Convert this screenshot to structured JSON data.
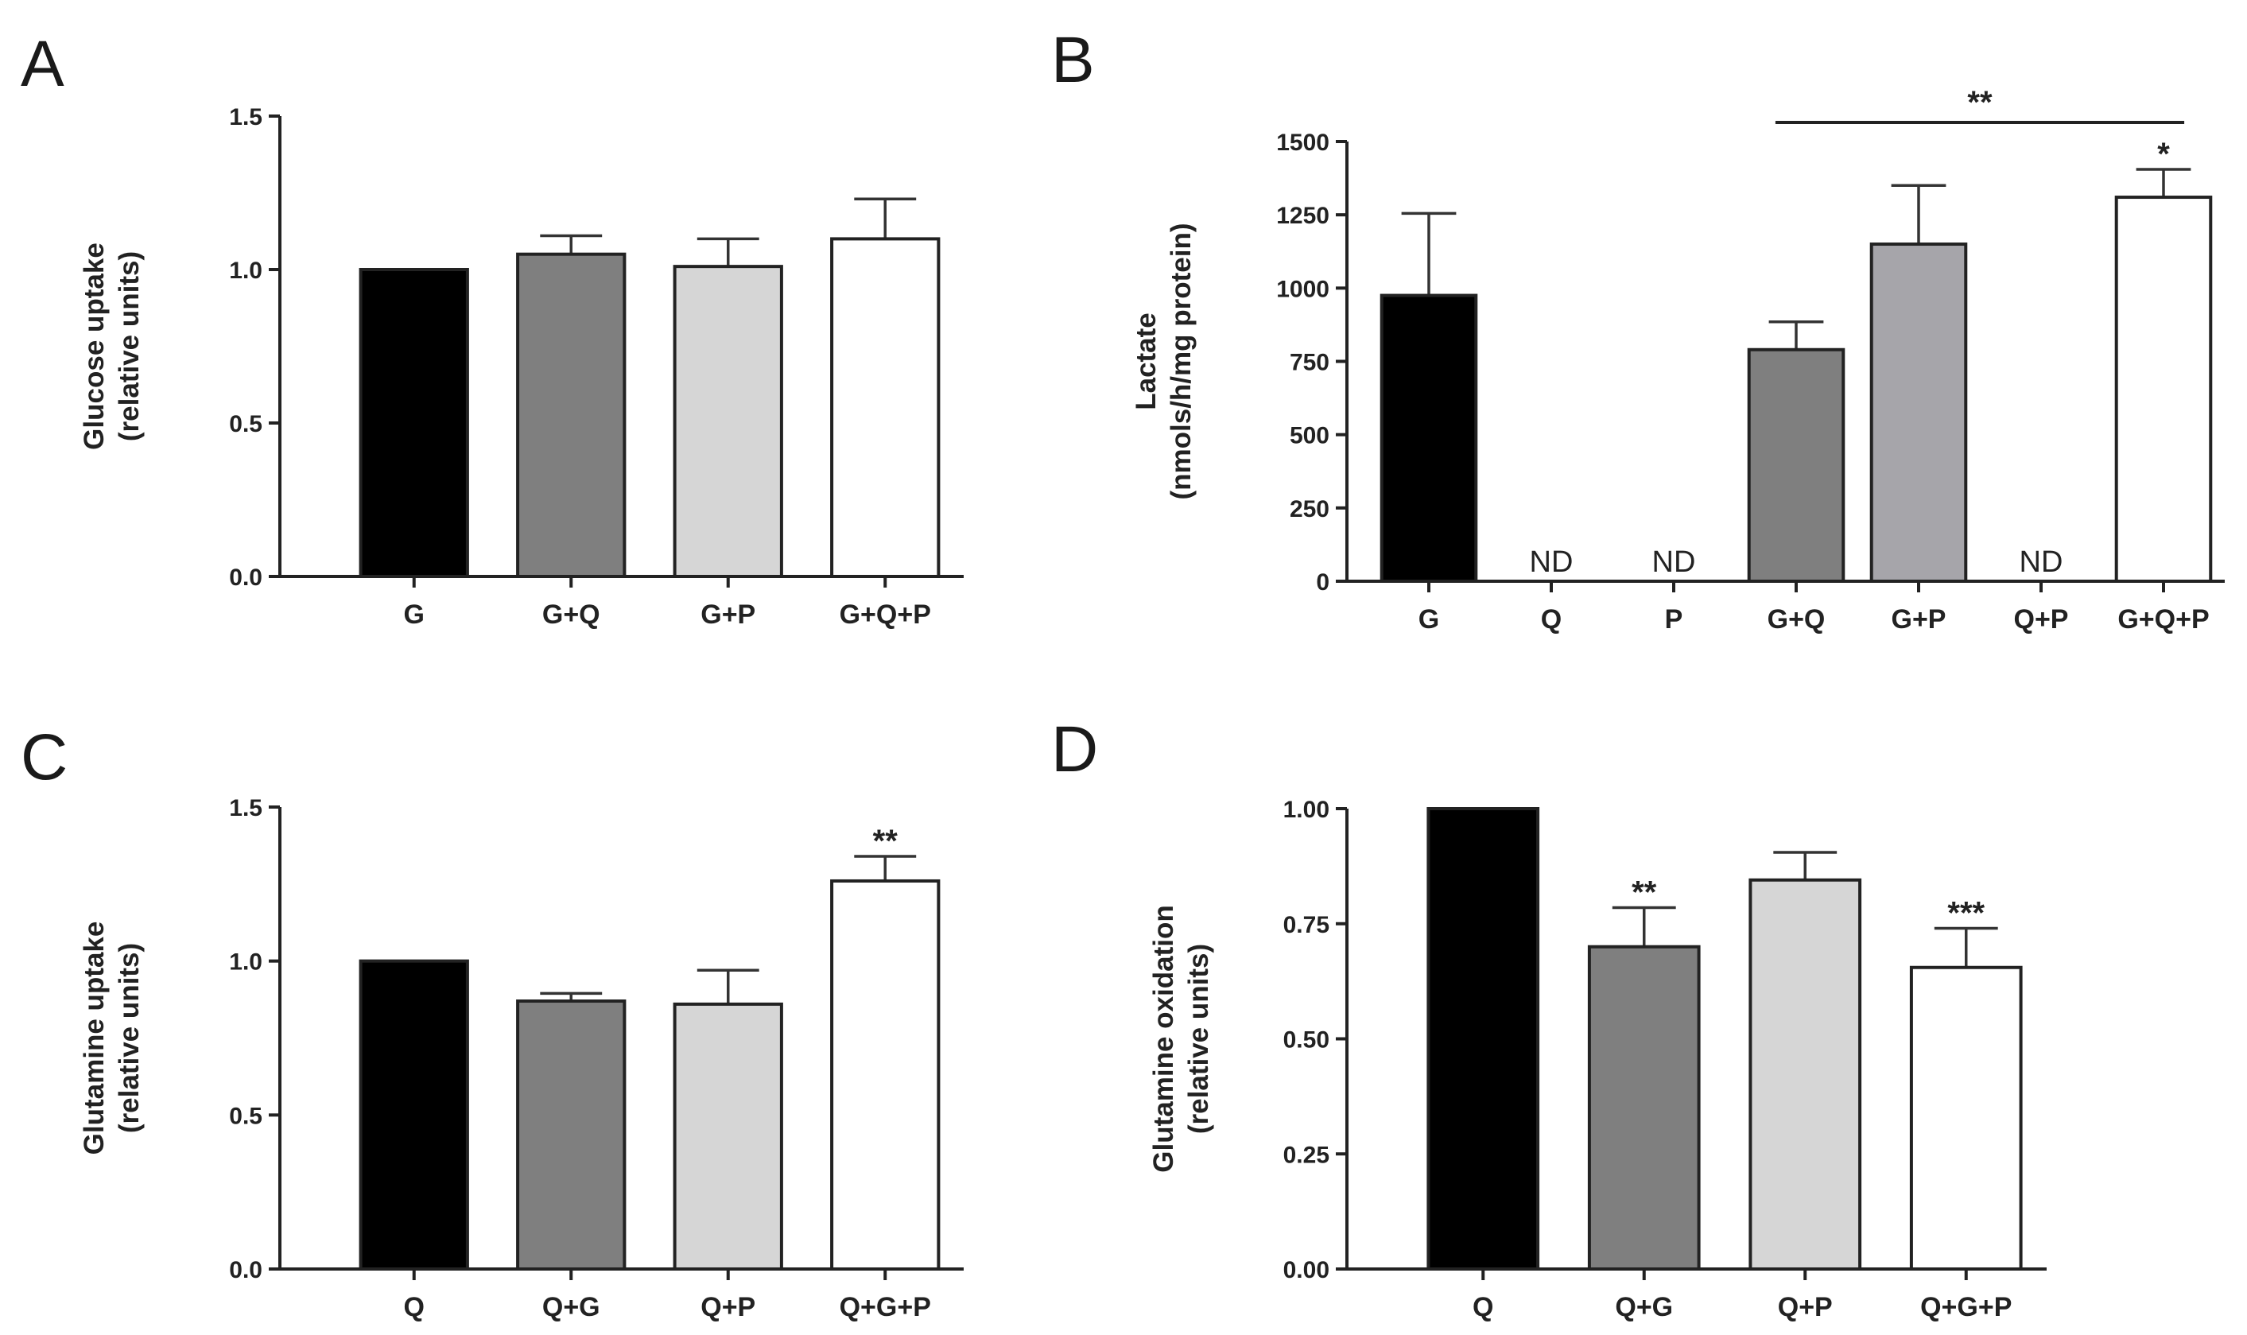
{
  "panels": [
    {
      "letter": "A"
    },
    {
      "letter": "B"
    },
    {
      "letter": "C"
    },
    {
      "letter": "D"
    }
  ],
  "chart_data": [
    {
      "type": "bar",
      "panel": "A",
      "title": "",
      "ylabel_lines": [
        "Glucose uptake",
        "(relative units)"
      ],
      "xlabel": "",
      "categories": [
        "G",
        "G+Q",
        "G+P",
        "G+Q+P"
      ],
      "values": [
        1.0,
        1.05,
        1.01,
        1.1
      ],
      "errors": [
        0.0,
        0.06,
        0.09,
        0.13
      ],
      "colors": [
        "#000000",
        "#7f7f7f",
        "#d6d6d6",
        "#ffffff"
      ],
      "annotations": [
        "",
        "",
        "",
        ""
      ],
      "nd": [
        false,
        false,
        false,
        false
      ],
      "ylim": [
        0,
        1.5
      ],
      "yticks": [
        0,
        0.5,
        1.0,
        1.5
      ],
      "ytick_labels": [
        "0.0",
        "0.5",
        "1.0",
        "1.5"
      ]
    },
    {
      "type": "bar",
      "panel": "B",
      "title": "",
      "ylabel_lines": [
        "Lactate",
        "(nmols/h/mg protein)"
      ],
      "xlabel": "",
      "categories": [
        "G",
        "Q",
        "P",
        "G+Q",
        "G+P",
        "Q+P",
        "G+Q+P"
      ],
      "values": [
        975,
        0,
        0,
        790,
        1150,
        0,
        1310
      ],
      "errors": [
        280,
        0,
        0,
        95,
        200,
        0,
        95
      ],
      "colors": [
        "#000000",
        "#ffffff",
        "#ffffff",
        "#7f7f7f",
        "#a6a5aa",
        "#ffffff",
        "#ffffff"
      ],
      "annotations": [
        "",
        "",
        "",
        "",
        "",
        "",
        "*"
      ],
      "nd": [
        false,
        true,
        true,
        false,
        false,
        true,
        false
      ],
      "nd_label": "ND",
      "bracket": {
        "from": "G+Q",
        "to": "G+Q+P",
        "label": "**"
      },
      "ylim": [
        0,
        1500
      ],
      "yticks": [
        0,
        250,
        500,
        750,
        1000,
        1250,
        1500
      ],
      "ytick_labels": [
        "0",
        "250",
        "500",
        "750",
        "1000",
        "1250",
        "1500"
      ]
    },
    {
      "type": "bar",
      "panel": "C",
      "title": "",
      "ylabel_lines": [
        "Glutamine uptake",
        "(relative units)"
      ],
      "xlabel": "",
      "categories": [
        "Q",
        "Q+G",
        "Q+P",
        "Q+G+P"
      ],
      "values": [
        1.0,
        0.87,
        0.86,
        1.26
      ],
      "errors": [
        0.0,
        0.025,
        0.11,
        0.08
      ],
      "colors": [
        "#000000",
        "#7f7f7f",
        "#d6d6d6",
        "#ffffff"
      ],
      "annotations": [
        "",
        "",
        "",
        "**"
      ],
      "nd": [
        false,
        false,
        false,
        false
      ],
      "ylim": [
        0,
        1.5
      ],
      "yticks": [
        0,
        0.5,
        1.0,
        1.5
      ],
      "ytick_labels": [
        "0.0",
        "0.5",
        "1.0",
        "1.5"
      ]
    },
    {
      "type": "bar",
      "panel": "D",
      "title": "",
      "ylabel_lines": [
        "Glutamine oxidation",
        "(relative units)"
      ],
      "xlabel": "",
      "categories": [
        "Q",
        "Q+G",
        "Q+P",
        "Q+G+P"
      ],
      "values": [
        1.0,
        0.7,
        0.845,
        0.655
      ],
      "errors": [
        0.0,
        0.085,
        0.06,
        0.085
      ],
      "colors": [
        "#000000",
        "#7f7f7f",
        "#d6d6d6",
        "#ffffff"
      ],
      "annotations": [
        "",
        "**",
        "",
        "***"
      ],
      "nd": [
        false,
        false,
        false,
        false
      ],
      "ylim": [
        0,
        1.0
      ],
      "yticks": [
        0,
        0.25,
        0.5,
        0.75,
        1.0
      ],
      "ytick_labels": [
        "0.00",
        "0.25",
        "0.50",
        "0.75",
        "1.00"
      ]
    }
  ]
}
